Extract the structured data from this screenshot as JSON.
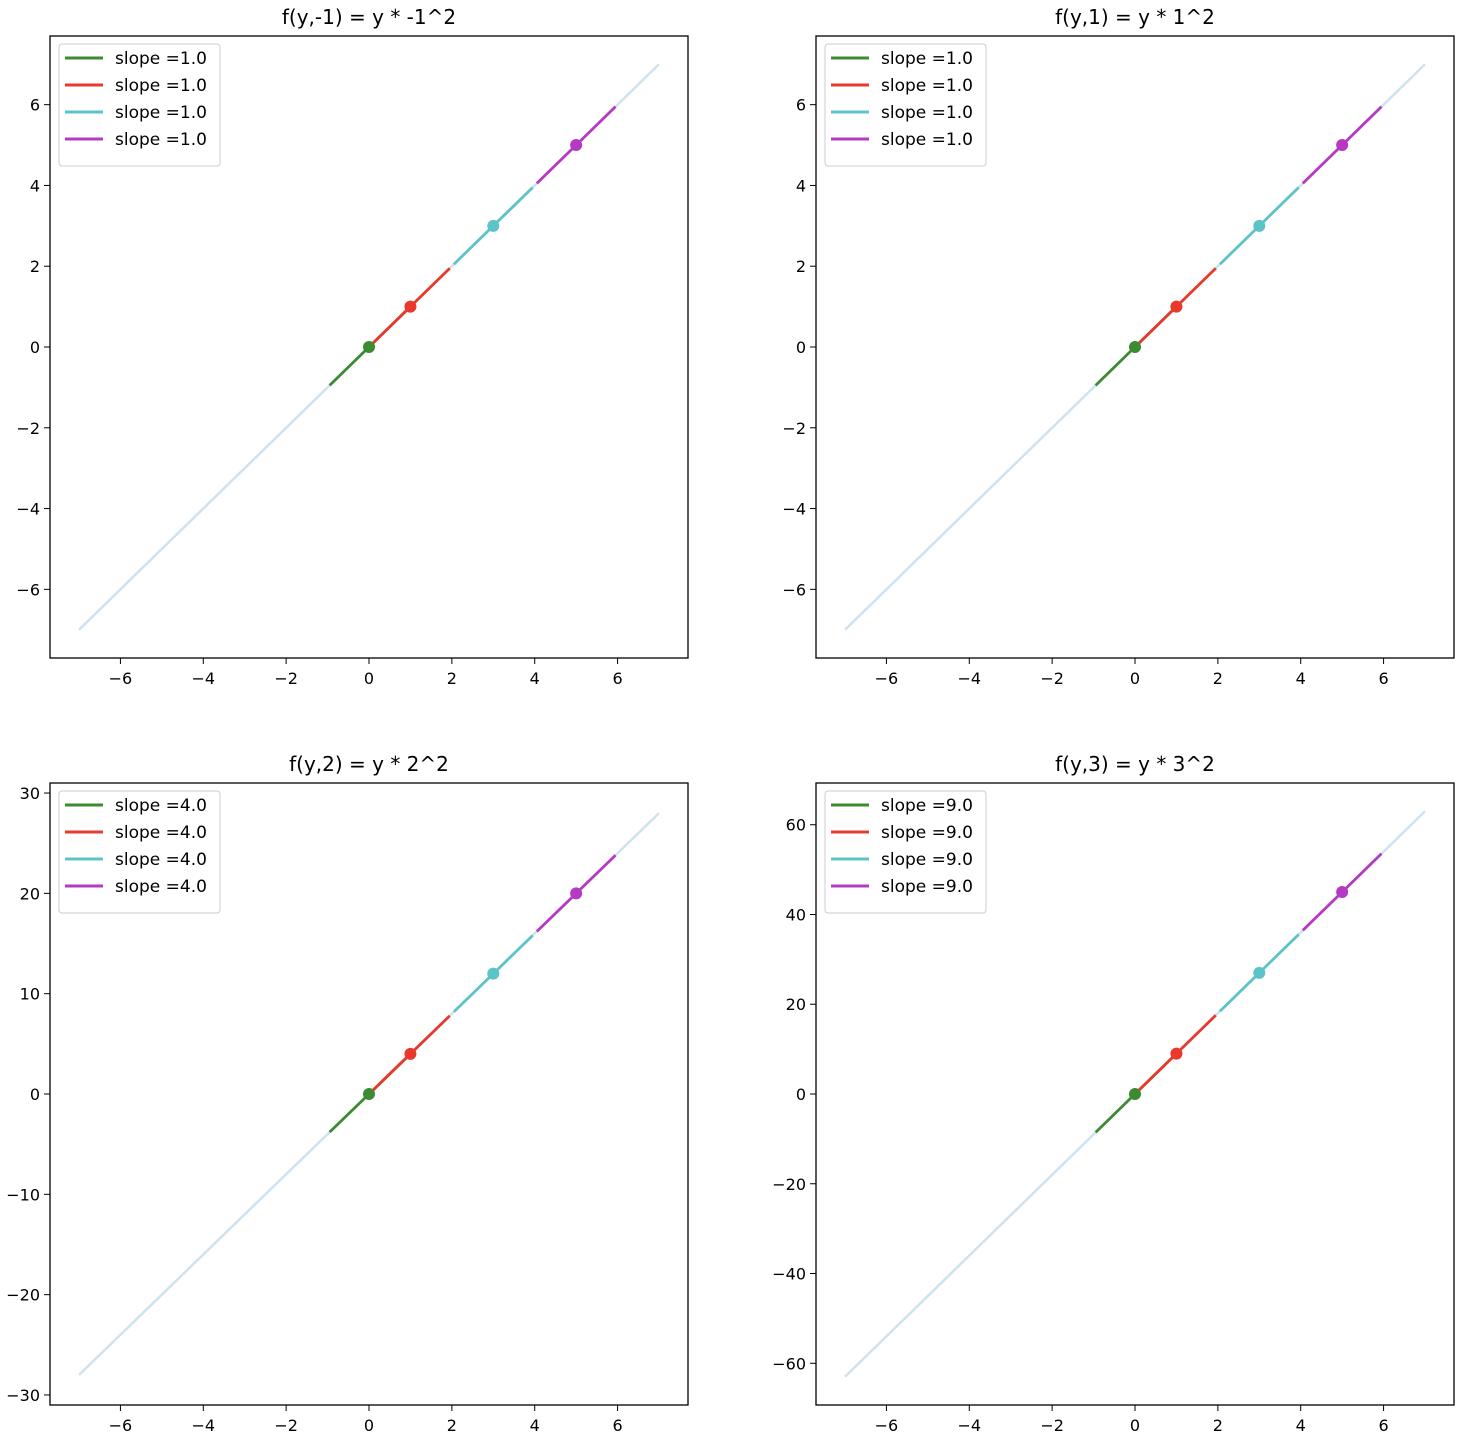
{
  "colors": {
    "full_line": "#cfe2f0",
    "green": "#3c8a32",
    "red": "#e8392c",
    "cyan": "#5cc4c8",
    "magenta": "#b639c4"
  },
  "chart_data": [
    {
      "type": "line",
      "title": "f(y,-1) = y * -1^2",
      "xlim": [
        -7.7,
        7.7
      ],
      "ylim": [
        -7.7,
        7.7
      ],
      "xticks": [
        -6,
        -4,
        -2,
        0,
        2,
        4,
        6
      ],
      "xtick_labels": [
        "−6",
        "−4",
        "−2",
        "0",
        "2",
        "4",
        "6"
      ],
      "yticks": [
        -6,
        -4,
        -2,
        0,
        2,
        4,
        6
      ],
      "ytick_labels": [
        "−6",
        "−4",
        "−2",
        "0",
        "2",
        "4",
        "6"
      ],
      "legend_position": "upper-left",
      "full_line": {
        "x": [
          -7,
          7
        ],
        "y": [
          -7,
          7
        ],
        "color": "#cfe2f0"
      },
      "series": [
        {
          "name": "slope =1.0",
          "color": "#3c8a32",
          "point": [
            0,
            0
          ],
          "x": [
            -0.95,
            0.95
          ],
          "y": [
            -0.95,
            0.95
          ]
        },
        {
          "name": "slope =1.0",
          "color": "#e8392c",
          "point": [
            1,
            1
          ],
          "x": [
            0.05,
            1.95
          ],
          "y": [
            0.05,
            1.95
          ]
        },
        {
          "name": "slope =1.0",
          "color": "#5cc4c8",
          "point": [
            3,
            3
          ],
          "x": [
            2.05,
            3.95
          ],
          "y": [
            2.05,
            3.95
          ]
        },
        {
          "name": "slope =1.0",
          "color": "#b639c4",
          "point": [
            5,
            5
          ],
          "x": [
            4.05,
            5.95
          ],
          "y": [
            4.05,
            5.95
          ]
        }
      ]
    },
    {
      "type": "line",
      "title": "f(y,1) = y * 1^2",
      "xlim": [
        -7.7,
        7.7
      ],
      "ylim": [
        -7.7,
        7.7
      ],
      "xticks": [
        -6,
        -4,
        -2,
        0,
        2,
        4,
        6
      ],
      "xtick_labels": [
        "−6",
        "−4",
        "−2",
        "0",
        "2",
        "4",
        "6"
      ],
      "yticks": [
        -6,
        -4,
        -2,
        0,
        2,
        4,
        6
      ],
      "ytick_labels": [
        "−6",
        "−4",
        "−2",
        "0",
        "2",
        "4",
        "6"
      ],
      "legend_position": "upper-left",
      "full_line": {
        "x": [
          -7,
          7
        ],
        "y": [
          -7,
          7
        ],
        "color": "#cfe2f0"
      },
      "series": [
        {
          "name": "slope =1.0",
          "color": "#3c8a32",
          "point": [
            0,
            0
          ],
          "x": [
            -0.95,
            0.95
          ],
          "y": [
            -0.95,
            0.95
          ]
        },
        {
          "name": "slope =1.0",
          "color": "#e8392c",
          "point": [
            1,
            1
          ],
          "x": [
            0.05,
            1.95
          ],
          "y": [
            0.05,
            1.95
          ]
        },
        {
          "name": "slope =1.0",
          "color": "#5cc4c8",
          "point": [
            3,
            3
          ],
          "x": [
            2.05,
            3.95
          ],
          "y": [
            2.05,
            3.95
          ]
        },
        {
          "name": "slope =1.0",
          "color": "#b639c4",
          "point": [
            5,
            5
          ],
          "x": [
            4.05,
            5.95
          ],
          "y": [
            4.05,
            5.95
          ]
        }
      ]
    },
    {
      "type": "line",
      "title": "f(y,2) = y * 2^2",
      "xlim": [
        -7.7,
        7.7
      ],
      "ylim": [
        -31,
        31
      ],
      "xticks": [
        -6,
        -4,
        -2,
        0,
        2,
        4,
        6
      ],
      "xtick_labels": [
        "−6",
        "−4",
        "−2",
        "0",
        "2",
        "4",
        "6"
      ],
      "yticks": [
        -30,
        -20,
        -10,
        0,
        10,
        20,
        30
      ],
      "ytick_labels": [
        "−30",
        "−20",
        "−10",
        "0",
        "10",
        "20",
        "30"
      ],
      "legend_position": "upper-left",
      "full_line": {
        "x": [
          -7,
          7
        ],
        "y": [
          -28,
          28
        ],
        "color": "#cfe2f0"
      },
      "series": [
        {
          "name": "slope =4.0",
          "color": "#3c8a32",
          "point": [
            0,
            0
          ],
          "x": [
            -0.95,
            0.95
          ],
          "y": [
            -3.8,
            3.8
          ]
        },
        {
          "name": "slope =4.0",
          "color": "#e8392c",
          "point": [
            1,
            4
          ],
          "x": [
            0.05,
            1.95
          ],
          "y": [
            0.2,
            7.8
          ]
        },
        {
          "name": "slope =4.0",
          "color": "#5cc4c8",
          "point": [
            3,
            12
          ],
          "x": [
            2.05,
            3.95
          ],
          "y": [
            8.2,
            15.8
          ]
        },
        {
          "name": "slope =4.0",
          "color": "#b639c4",
          "point": [
            5,
            20
          ],
          "x": [
            4.05,
            5.95
          ],
          "y": [
            16.2,
            23.8
          ]
        }
      ]
    },
    {
      "type": "line",
      "title": "f(y,3) = y * 3^2",
      "xlim": [
        -7.7,
        7.7
      ],
      "ylim": [
        -69.3,
        69.3
      ],
      "xticks": [
        -6,
        -4,
        -2,
        0,
        2,
        4,
        6
      ],
      "xtick_labels": [
        "−6",
        "−4",
        "−2",
        "0",
        "2",
        "4",
        "6"
      ],
      "yticks": [
        -60,
        -40,
        -20,
        0,
        20,
        40,
        60
      ],
      "ytick_labels": [
        "−60",
        "−40",
        "−20",
        "0",
        "20",
        "40",
        "60"
      ],
      "legend_position": "upper-left",
      "full_line": {
        "x": [
          -7,
          7
        ],
        "y": [
          -63,
          63
        ],
        "color": "#cfe2f0"
      },
      "series": [
        {
          "name": "slope =9.0",
          "color": "#3c8a32",
          "point": [
            0,
            0
          ],
          "x": [
            -0.95,
            0.95
          ],
          "y": [
            -8.55,
            8.55
          ]
        },
        {
          "name": "slope =9.0",
          "color": "#e8392c",
          "point": [
            1,
            9
          ],
          "x": [
            0.05,
            1.95
          ],
          "y": [
            0.45,
            17.55
          ]
        },
        {
          "name": "slope =9.0",
          "color": "#5cc4c8",
          "point": [
            3,
            27
          ],
          "x": [
            2.05,
            3.95
          ],
          "y": [
            18.45,
            35.55
          ]
        },
        {
          "name": "slope =9.0",
          "color": "#b639c4",
          "point": [
            5,
            45
          ],
          "x": [
            4.05,
            5.95
          ],
          "y": [
            36.45,
            53.55
          ]
        }
      ]
    }
  ]
}
